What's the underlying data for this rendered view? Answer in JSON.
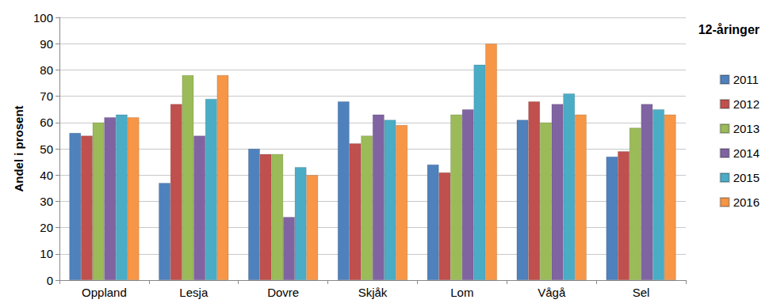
{
  "chart_data": {
    "type": "bar",
    "title": "12-åringer",
    "y_label": "Andel i prosent",
    "categories": [
      "Oppland",
      "Lesja",
      "Dovre",
      "Skjåk",
      "Lom",
      "Vågå",
      "Sel"
    ],
    "series": [
      {
        "name": "2011",
        "color": "#4F81BD",
        "values": [
          56,
          37,
          50,
          68,
          44,
          61,
          47
        ]
      },
      {
        "name": "2012",
        "color": "#C0504D",
        "values": [
          55,
          67,
          48,
          52,
          41,
          68,
          49
        ]
      },
      {
        "name": "2013",
        "color": "#9BBB59",
        "values": [
          60,
          78,
          48,
          55,
          63,
          60,
          58
        ]
      },
      {
        "name": "2014",
        "color": "#8064A2",
        "values": [
          62,
          55,
          24,
          63,
          65,
          67,
          67
        ]
      },
      {
        "name": "2015",
        "color": "#4BACC6",
        "values": [
          63,
          69,
          43,
          61,
          82,
          71,
          65
        ]
      },
      {
        "name": "2016",
        "color": "#F79646",
        "values": [
          62,
          78,
          40,
          59,
          90,
          63,
          63
        ]
      }
    ],
    "ylim": [
      0,
      100
    ],
    "yticks": [
      0,
      10,
      20,
      30,
      40,
      50,
      60,
      70,
      80,
      90,
      100
    ],
    "grid": true,
    "legend": "right"
  }
}
